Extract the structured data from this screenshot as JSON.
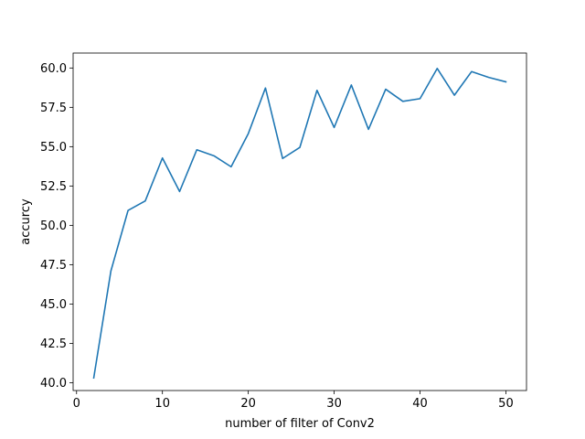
{
  "chart_data": {
    "type": "line",
    "title": "",
    "xlabel": "number of filter of Conv2",
    "ylabel": "accurcy",
    "xlim": [
      -0.4,
      52.4
    ],
    "ylim": [
      39.5,
      60.95
    ],
    "xticks": [
      0,
      10,
      20,
      30,
      40,
      50
    ],
    "yticks": [
      40.0,
      42.5,
      45.0,
      47.5,
      50.0,
      52.5,
      55.0,
      57.5,
      60.0
    ],
    "grid": false,
    "legend": "none",
    "series": [
      {
        "color": "#1f77b4",
        "x": [
          2,
          4,
          6,
          8,
          10,
          12,
          14,
          16,
          18,
          20,
          22,
          24,
          26,
          28,
          30,
          32,
          34,
          36,
          38,
          40,
          42,
          44,
          46,
          48,
          50
        ],
        "y": [
          40.3,
          47.1,
          50.95,
          51.55,
          54.28,
          52.15,
          54.8,
          54.42,
          53.72,
          55.83,
          58.73,
          54.25,
          54.95,
          58.58,
          56.22,
          58.92,
          56.1,
          58.65,
          57.88,
          58.05,
          59.97,
          58.27,
          59.77,
          59.4,
          59.12
        ]
      }
    ]
  }
}
